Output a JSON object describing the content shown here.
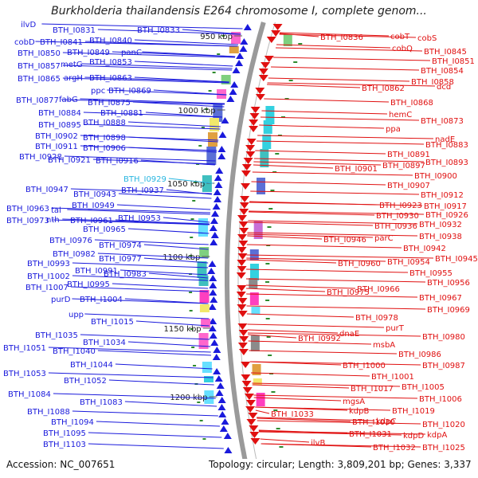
{
  "title": "Burkholderia thailandensis E264 chromosome I, complete genom...",
  "footer": {
    "accession": "Accession: NC_007651",
    "info": "Topology: circular; Length: 3,809,201 bp; Genes: 3,337"
  },
  "colors": {
    "left_labels": "#1a1adc",
    "right_labels": "#e01010",
    "highlight_label": "#29b6e0",
    "backbone": "#9a9a9a",
    "forward_genes": "#1a1adc",
    "reverse_genes": "#e01010",
    "gc_skew": "#2e8b2e"
  },
  "ticks": [
    {
      "label": "950 kbp"
    },
    {
      "label": "1000 kbp"
    },
    {
      "label": "1050 kbp"
    },
    {
      "label": "1100 kbp"
    },
    {
      "label": "1150 kbp"
    },
    {
      "label": "1200 kbp"
    }
  ],
  "left_labels": [
    {
      "text": "ilvD"
    },
    {
      "text": "BTH_I0831"
    },
    {
      "text": "BTH_I0833"
    },
    {
      "text": "cobD"
    },
    {
      "text": "BTH_I0841"
    },
    {
      "text": "BTH_I0840"
    },
    {
      "text": "BTH_I0850"
    },
    {
      "text": "BTH_I0849"
    },
    {
      "text": "panC"
    },
    {
      "text": "BTH_I0857"
    },
    {
      "text": "metG"
    },
    {
      "text": "BTH_I0853"
    },
    {
      "text": "BTH_I0865"
    },
    {
      "text": "argH"
    },
    {
      "text": "BTH_I0863"
    },
    {
      "text": "ppc"
    },
    {
      "text": "BTH_I0869"
    },
    {
      "text": "BTH_I0877"
    },
    {
      "text": "fabG"
    },
    {
      "text": "BTH_I0875"
    },
    {
      "text": "BTH_I0884"
    },
    {
      "text": "BTH_I0881"
    },
    {
      "text": "BTH_I0895"
    },
    {
      "text": "BTH_I0888"
    },
    {
      "text": "BTH_I0902"
    },
    {
      "text": "BTH_I0898"
    },
    {
      "text": "BTH_I0911"
    },
    {
      "text": "BTH_I0906"
    },
    {
      "text": "BTH_I0928"
    },
    {
      "text": "BTH_I0921"
    },
    {
      "text": "BTH_I0916"
    },
    {
      "text": "BTH_I0929",
      "highlight": true
    },
    {
      "text": "BTH_I0947"
    },
    {
      "text": "BTH_I0943"
    },
    {
      "text": "BTH_I0937"
    },
    {
      "text": "BTH_I0949"
    },
    {
      "text": "BTH_I0963"
    },
    {
      "text": "tal"
    },
    {
      "text": "BTH_I0973"
    },
    {
      "text": "nth"
    },
    {
      "text": "BTH_I0961"
    },
    {
      "text": "BTH_I0953"
    },
    {
      "text": "BTH_I0965"
    },
    {
      "text": "BTH_I0976"
    },
    {
      "text": "BTH_I0974"
    },
    {
      "text": "BTH_I0982"
    },
    {
      "text": "BTH_I0977"
    },
    {
      "text": "BTH_I0993"
    },
    {
      "text": "BTH_I0991"
    },
    {
      "text": "BTH_I0983"
    },
    {
      "text": "BTH_I1002"
    },
    {
      "text": "BTH_I1007"
    },
    {
      "text": "BTH_I0995"
    },
    {
      "text": "purD"
    },
    {
      "text": "BTH_I1004"
    },
    {
      "text": "upp"
    },
    {
      "text": "BTH_I1015"
    },
    {
      "text": "BTH_I1035"
    },
    {
      "text": "BTH_I1034"
    },
    {
      "text": "BTH_I1051"
    },
    {
      "text": "BTH_I1040"
    },
    {
      "text": "BTH_I1044"
    },
    {
      "text": "BTH_I1053"
    },
    {
      "text": "BTH_I1052"
    },
    {
      "text": "BTH_I1084"
    },
    {
      "text": "BTH_I1083"
    },
    {
      "text": "BTH_I1088"
    },
    {
      "text": "BTH_I1094"
    },
    {
      "text": "BTH_I1095"
    },
    {
      "text": "BTH_I1103"
    }
  ],
  "right_labels": [
    {
      "text": "BTH_I0836"
    },
    {
      "text": "cobT"
    },
    {
      "text": "cobS"
    },
    {
      "text": "cobQ"
    },
    {
      "text": "BTH_I0845"
    },
    {
      "text": "BTH_I0851"
    },
    {
      "text": "BTH_I0854"
    },
    {
      "text": "BTH_I0858"
    },
    {
      "text": "BTH_I0862"
    },
    {
      "text": "dcd"
    },
    {
      "text": "BTH_I0868"
    },
    {
      "text": "hemC"
    },
    {
      "text": "BTH_I0873"
    },
    {
      "text": "ppa"
    },
    {
      "text": "nadE"
    },
    {
      "text": "BTH_I0883"
    },
    {
      "text": "BTH_I0891"
    },
    {
      "text": "BTH_I0901"
    },
    {
      "text": "BTH_I0897"
    },
    {
      "text": "BTH_I0893"
    },
    {
      "text": "BTH_I0900"
    },
    {
      "text": "BTH_I0907"
    },
    {
      "text": "BTH_I0912"
    },
    {
      "text": "BTH_I0923"
    },
    {
      "text": "BTH_I0917"
    },
    {
      "text": "BTH_I0930"
    },
    {
      "text": "BTH_I0926"
    },
    {
      "text": "BTH_I0936"
    },
    {
      "text": "BTH_I0932"
    },
    {
      "text": "BTH_I0946"
    },
    {
      "text": "parC"
    },
    {
      "text": "BTH_I0938"
    },
    {
      "text": "BTH_I0942"
    },
    {
      "text": "BTH_I0945"
    },
    {
      "text": "BTH_I0960"
    },
    {
      "text": "BTH_I0954"
    },
    {
      "text": "BTH_I0955"
    },
    {
      "text": "BTH_I0956"
    },
    {
      "text": "BTH_I0966"
    },
    {
      "text": "BTH_I0975"
    },
    {
      "text": "BTH_I0967"
    },
    {
      "text": "BTH_I0969"
    },
    {
      "text": "BTH_I0978"
    },
    {
      "text": "purT"
    },
    {
      "text": "dnaE"
    },
    {
      "text": "BTH_I0992"
    },
    {
      "text": "BTH_I0980"
    },
    {
      "text": "msbA"
    },
    {
      "text": "BTH_I0986"
    },
    {
      "text": "BTH_I0987"
    },
    {
      "text": "BTH_I1000"
    },
    {
      "text": "BTH_I1001"
    },
    {
      "text": "BTH_I1017"
    },
    {
      "text": "BTH_I1005"
    },
    {
      "text": "BTH_I1006"
    },
    {
      "text": "mgsA"
    },
    {
      "text": "kdpB"
    },
    {
      "text": "BTH_I1019"
    },
    {
      "text": "BTH_I1033"
    },
    {
      "text": "BTH_I1030"
    },
    {
      "text": "kdpC"
    },
    {
      "text": "BTH_I1020"
    },
    {
      "text": "BTH_I1031"
    },
    {
      "text": "kdpD"
    },
    {
      "text": "kdpA"
    },
    {
      "text": "ilvB"
    },
    {
      "text": "BTH_I1032"
    },
    {
      "text": "BTH_I1025"
    }
  ]
}
